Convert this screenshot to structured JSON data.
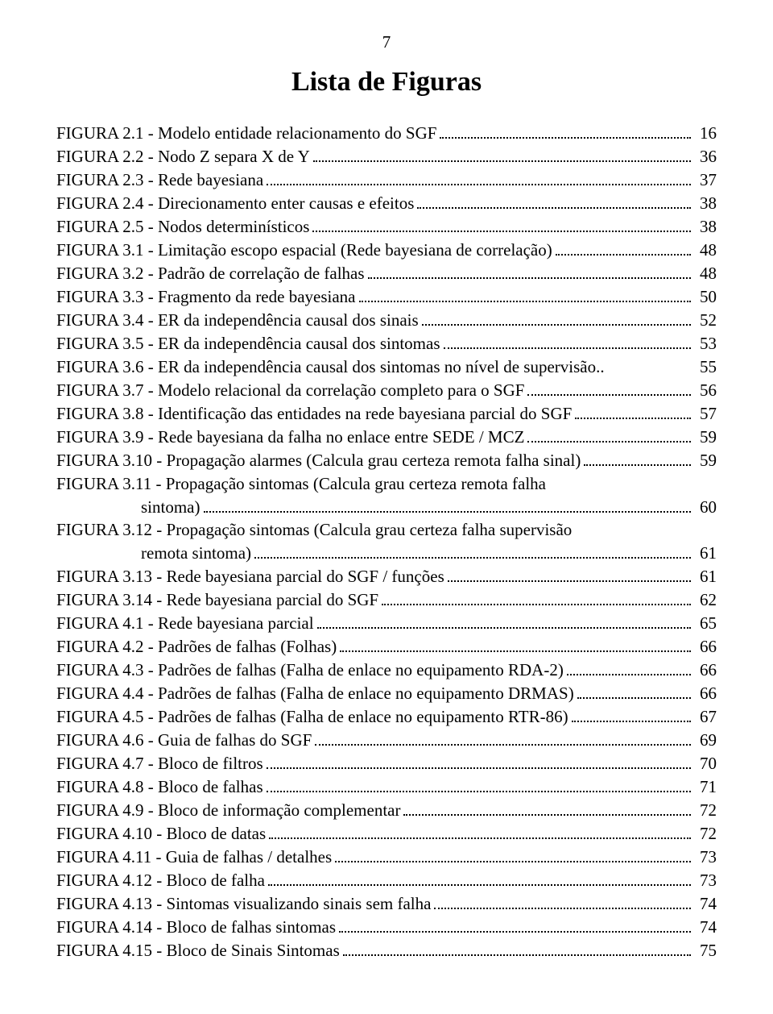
{
  "page_number": "7",
  "title": "Lista de Figuras",
  "font": {
    "family": "Times New Roman",
    "body_size_pt": 16,
    "title_size_pt": 26,
    "title_weight": "bold"
  },
  "colors": {
    "text": "#000000",
    "background": "#ffffff",
    "dots": "#000000"
  },
  "entries": [
    {
      "label": "FIGURA 2.1 - Modelo entidade relacionamento do SGF",
      "page": "16",
      "indent": ""
    },
    {
      "label": "FIGURA 2.2 - Nodo Z separa X de Y",
      "page": "36",
      "indent": ""
    },
    {
      "label": "FIGURA 2.3 - Rede bayesiana",
      "page": "37",
      "indent": ""
    },
    {
      "label": "FIGURA 2.4 - Direcionamento enter causas e efeitos",
      "page": "38",
      "indent": ""
    },
    {
      "label": "FIGURA 2.5 - Nodos determinísticos",
      "page": "38",
      "indent": ""
    },
    {
      "label": "FIGURA 3.1 - Limitação escopo espacial  (Rede bayesiana de correlação)",
      "page": "48",
      "indent": ""
    },
    {
      "label": "FIGURA 3.2 - Padrão de  correlação de falhas",
      "page": "48",
      "indent": ""
    },
    {
      "label": "FIGURA 3.3 - Fragmento da rede bayesiana",
      "page": "50",
      "indent": ""
    },
    {
      "label": "FIGURA 3.4 - ER da independência causal dos sinais",
      "page": "52",
      "indent": ""
    },
    {
      "label": "FIGURA 3.5 - ER da independência causal dos sintomas",
      "page": "53",
      "indent": ""
    },
    {
      "label": "FIGURA 3.6 - ER da independência causal dos sintomas no nível de supervisão..",
      "page": "55",
      "indent": "",
      "no_dots": true
    },
    {
      "label": "FIGURA 3.7 - Modelo relacional da correlação  completo para o SGF",
      "page": "56",
      "indent": ""
    },
    {
      "label": "FIGURA 3.8 - Identificação das entidades na rede bayesiana parcial do SGF",
      "page": "57",
      "indent": ""
    },
    {
      "label": "FIGURA 3.9 - Rede bayesiana da falha no enlace entre SEDE / MCZ",
      "page": "59",
      "indent": ""
    },
    {
      "label": "FIGURA 3.10 - Propagação alarmes (Calcula grau certeza remota falha sinal)",
      "page": "59",
      "indent": ""
    },
    {
      "label": "FIGURA 3.11 -  Propagação  sintomas  (Calcula  grau  certeza  remota  falha",
      "page": "",
      "indent": "",
      "no_dots": true,
      "no_page": true
    },
    {
      "label": "sintoma)",
      "page": "60",
      "indent": "                    "
    },
    {
      "label": "FIGURA  3.12  -  Propagação   sintomas  (Calcula  grau  certeza  falha  supervisão",
      "page": "",
      "indent": "",
      "no_dots": true,
      "no_page": true
    },
    {
      "label": "remota sintoma)",
      "page": "61",
      "indent": "                    "
    },
    {
      "label": "FIGURA 3.13 - Rede bayesiana parcial do SGF  / funções",
      "page": "61",
      "indent": ""
    },
    {
      "label": "FIGURA 3.14 - Rede bayesiana parcial do SGF",
      "page": "62",
      "indent": ""
    },
    {
      "label": "FIGURA 4.1 - Rede bayesiana parcial",
      "page": "65",
      "indent": ""
    },
    {
      "label": "FIGURA 4.2 - Padrões de falhas (Folhas)",
      "page": "66",
      "indent": ""
    },
    {
      "label": "FIGURA 4.3 - Padrões de falhas (Falha de enlace no equipamento RDA-2)",
      "page": "66",
      "indent": ""
    },
    {
      "label": "FIGURA 4.4 - Padrões de falhas (Falha de enlace no equipamento DRMAS)",
      "page": "66",
      "indent": ""
    },
    {
      "label": "FIGURA 4.5 - Padrões de falhas (Falha de enlace no equipamento RTR-86)",
      "page": "67",
      "indent": ""
    },
    {
      "label": "FIGURA 4.6 - Guia de falhas do SGF",
      "page": "69",
      "indent": ""
    },
    {
      "label": "FIGURA 4.7 - Bloco de filtros",
      "page": "70",
      "indent": ""
    },
    {
      "label": "FIGURA 4.8 - Bloco de falhas",
      "page": "71",
      "indent": ""
    },
    {
      "label": "FIGURA 4.9 - Bloco de informação complementar",
      "page": "72",
      "indent": ""
    },
    {
      "label": "FIGURA 4.10 - Bloco de datas",
      "page": "72",
      "indent": ""
    },
    {
      "label": "FIGURA 4.11 - Guia de falhas / detalhes",
      "page": "73",
      "indent": ""
    },
    {
      "label": "FIGURA 4.12 - Bloco de falha",
      "page": "73",
      "indent": ""
    },
    {
      "label": "FIGURA 4.13 - Sintomas visualizando sinais sem falha",
      "page": "74",
      "indent": ""
    },
    {
      "label": "FIGURA 4.14 - Bloco de falhas sintomas",
      "page": "74",
      "indent": ""
    },
    {
      "label": "FIGURA 4.15 - Bloco de Sinais Sintomas",
      "page": "75",
      "indent": ""
    }
  ]
}
